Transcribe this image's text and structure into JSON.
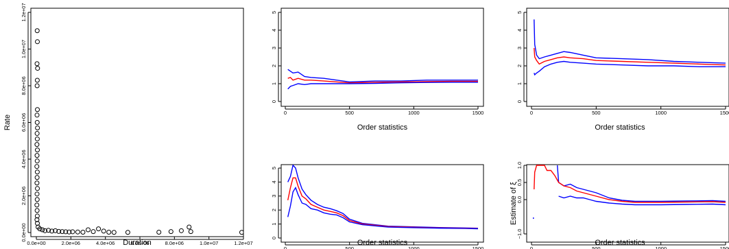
{
  "chart_data": [
    {
      "type": "scatter",
      "xlabel": "Duration",
      "ylabel": "Rate",
      "xlim": [
        0,
        12000000
      ],
      "ylim": [
        0,
        12000000
      ],
      "x_ticks": [
        "0.0e+00",
        "2.0e+06",
        "4.0e+06",
        "6.0e+06",
        "8.0e+06",
        "1.0e+07",
        "1.2e+07"
      ],
      "y_ticks": [
        "0.0e+00",
        "2.0e+06",
        "4.0e+06",
        "6.0e+06",
        "8.0e+06",
        "1.0e+07",
        "1.2e+07"
      ],
      "points": [
        [
          50000,
          11000000
        ],
        [
          60000,
          10400000
        ],
        [
          40000,
          9200000
        ],
        [
          70000,
          8950000
        ],
        [
          55000,
          8300000
        ],
        [
          45000,
          8000000
        ],
        [
          60000,
          6700000
        ],
        [
          40000,
          6400000
        ],
        [
          50000,
          6000000
        ],
        [
          65000,
          5700000
        ],
        [
          45000,
          5400000
        ],
        [
          55000,
          5100000
        ],
        [
          35000,
          4800000
        ],
        [
          60000,
          4500000
        ],
        [
          40000,
          4200000
        ],
        [
          50000,
          3900000
        ],
        [
          30000,
          3600000
        ],
        [
          55000,
          3300000
        ],
        [
          45000,
          3000000
        ],
        [
          35000,
          2700000
        ],
        [
          60000,
          2400000
        ],
        [
          40000,
          2100000
        ],
        [
          50000,
          1800000
        ],
        [
          30000,
          1500000
        ],
        [
          45000,
          1200000
        ],
        [
          55000,
          900000
        ],
        [
          35000,
          700000
        ],
        [
          60000,
          500000
        ],
        [
          100000,
          300000
        ],
        [
          200000,
          200000
        ],
        [
          350000,
          150000
        ],
        [
          500000,
          100000
        ],
        [
          700000,
          120000
        ],
        [
          900000,
          80000
        ],
        [
          1100000,
          100000
        ],
        [
          1300000,
          60000
        ],
        [
          1500000,
          50000
        ],
        [
          1700000,
          40000
        ],
        [
          1900000,
          30000
        ],
        [
          2100000,
          40000
        ],
        [
          2400000,
          30000
        ],
        [
          2700000,
          20000
        ],
        [
          3000000,
          150000
        ],
        [
          3300000,
          50000
        ],
        [
          3600000,
          200000
        ],
        [
          3900000,
          80000
        ],
        [
          4200000,
          20000
        ],
        [
          4500000,
          10000
        ],
        [
          5300000,
          10000
        ],
        [
          7100000,
          20000
        ],
        [
          7800000,
          50000
        ],
        [
          8400000,
          100000
        ],
        [
          8850000,
          300000
        ],
        [
          8950000,
          50000
        ],
        [
          11900000,
          10000
        ]
      ]
    },
    {
      "type": "line",
      "xlabel": "Order statistics",
      "ylabel": "",
      "xlim": [
        0,
        1500
      ],
      "ylim": [
        0,
        5
      ],
      "x_ticks": [
        "0",
        "500",
        "1000",
        "1500"
      ],
      "y_ticks": [
        "0",
        "1",
        "2",
        "3",
        "4",
        "5"
      ],
      "series": [
        {
          "color": "#0000ff",
          "x": [
            20,
            40,
            60,
            100,
            150,
            200,
            300,
            400,
            500,
            700,
            900,
            1100,
            1300,
            1500
          ],
          "y": [
            1.8,
            1.7,
            1.6,
            1.65,
            1.4,
            1.35,
            1.3,
            1.2,
            1.1,
            1.15,
            1.15,
            1.2,
            1.2,
            1.2
          ]
        },
        {
          "color": "#ff0000",
          "x": [
            20,
            40,
            60,
            100,
            150,
            200,
            300,
            400,
            500,
            700,
            900,
            1100,
            1300,
            1500
          ],
          "y": [
            1.3,
            1.35,
            1.2,
            1.3,
            1.2,
            1.2,
            1.15,
            1.1,
            1.05,
            1.08,
            1.1,
            1.12,
            1.13,
            1.13
          ]
        },
        {
          "color": "#0000ff",
          "x": [
            20,
            40,
            60,
            100,
            150,
            200,
            300,
            400,
            500,
            700,
            900,
            1100,
            1300,
            1500
          ],
          "y": [
            0.7,
            0.85,
            0.9,
            1.0,
            0.95,
            1.0,
            1.0,
            1.0,
            1.0,
            1.02,
            1.05,
            1.07,
            1.08,
            1.08
          ]
        }
      ]
    },
    {
      "type": "line",
      "xlabel": "Order statistics",
      "ylabel": "",
      "xlim": [
        0,
        1500
      ],
      "ylim": [
        0,
        5
      ],
      "x_ticks": [
        "0",
        "500",
        "1000",
        "1500"
      ],
      "y_ticks": [
        "0",
        "1",
        "2",
        "3",
        "4",
        "5"
      ],
      "series": [
        {
          "color": "#0000ff",
          "x": [
            20,
            25,
            40,
            60,
            100,
            150,
            200,
            250,
            300,
            400,
            500,
            700,
            900,
            1100,
            1300,
            1500
          ],
          "y": [
            4.6,
            3.2,
            2.6,
            2.4,
            2.5,
            2.6,
            2.7,
            2.8,
            2.75,
            2.6,
            2.45,
            2.4,
            2.35,
            2.25,
            2.2,
            2.15
          ]
        },
        {
          "color": "#ff0000",
          "x": [
            20,
            25,
            40,
            60,
            100,
            150,
            200,
            250,
            300,
            400,
            500,
            700,
            900,
            1100,
            1300,
            1500
          ],
          "y": [
            3.0,
            2.5,
            2.3,
            2.1,
            2.25,
            2.35,
            2.45,
            2.5,
            2.45,
            2.4,
            2.3,
            2.25,
            2.2,
            2.15,
            2.1,
            2.05
          ]
        },
        {
          "color": "#0000ff",
          "x": [
            20,
            25,
            40,
            60,
            100,
            150,
            200,
            250,
            300,
            400,
            500,
            700,
            900,
            1100,
            1300,
            1500
          ],
          "y": [
            1.6,
            1.5,
            1.6,
            1.7,
            1.95,
            2.1,
            2.2,
            2.25,
            2.2,
            2.15,
            2.1,
            2.05,
            2.0,
            2.0,
            1.95,
            1.95
          ]
        }
      ]
    },
    {
      "type": "line",
      "xlabel": "Order statistics",
      "ylabel": "",
      "xlim": [
        0,
        1500
      ],
      "ylim": [
        0,
        5
      ],
      "x_ticks": [
        "0",
        "500",
        "1000",
        "1500"
      ],
      "y_ticks": [
        "0",
        "1",
        "2",
        "3",
        "4",
        "5"
      ],
      "series": [
        {
          "color": "#0000ff",
          "x": [
            20,
            40,
            60,
            80,
            100,
            130,
            160,
            200,
            250,
            300,
            350,
            400,
            450,
            500,
            600,
            800,
            1000,
            1200,
            1400,
            1500
          ],
          "y": [
            4.0,
            4.4,
            5.2,
            5.0,
            4.3,
            3.5,
            3.1,
            2.7,
            2.4,
            2.2,
            2.1,
            1.95,
            1.75,
            1.35,
            1.05,
            0.85,
            0.8,
            0.75,
            0.72,
            0.7
          ]
        },
        {
          "color": "#ff0000",
          "x": [
            20,
            40,
            60,
            80,
            100,
            130,
            160,
            200,
            250,
            300,
            350,
            400,
            450,
            500,
            600,
            800,
            1000,
            1200,
            1400,
            1500
          ],
          "y": [
            2.7,
            3.6,
            4.3,
            4.3,
            3.7,
            3.0,
            2.8,
            2.4,
            2.2,
            2.0,
            1.9,
            1.8,
            1.6,
            1.25,
            1.0,
            0.82,
            0.77,
            0.72,
            0.7,
            0.68
          ]
        },
        {
          "color": "#0000ff",
          "x": [
            20,
            40,
            60,
            80,
            100,
            130,
            160,
            200,
            250,
            300,
            350,
            400,
            450,
            500,
            600,
            800,
            1000,
            1200,
            1400,
            1500
          ],
          "y": [
            1.5,
            2.3,
            3.3,
            3.6,
            3.1,
            2.5,
            2.4,
            2.1,
            2.0,
            1.8,
            1.7,
            1.65,
            1.45,
            1.15,
            0.95,
            0.78,
            0.74,
            0.7,
            0.68,
            0.66
          ]
        }
      ]
    },
    {
      "type": "line",
      "xlabel": "Order statistics",
      "ylabel": "Estimate of ξ",
      "xlim": [
        0,
        1500
      ],
      "ylim": [
        -1,
        1
      ],
      "x_ticks": [
        "0",
        "500",
        "1000",
        "1500"
      ],
      "y_ticks": [
        "−1.0",
        "0.0",
        "0.5",
        "1.0"
      ],
      "series": [
        {
          "color": "#0000ff",
          "x": [
            200,
            210,
            250,
            300,
            350,
            400,
            450,
            500,
            600,
            700,
            800,
            1000,
            1200,
            1400,
            1500
          ],
          "y": [
            1.0,
            0.5,
            0.4,
            0.45,
            0.35,
            0.3,
            0.25,
            0.2,
            0.05,
            -0.02,
            -0.05,
            -0.05,
            -0.04,
            -0.03,
            -0.05
          ]
        },
        {
          "color": "#ff0000",
          "x": [
            20,
            25,
            40,
            60,
            100,
            120,
            150,
            180,
            210,
            250,
            300,
            350,
            400,
            450,
            500,
            600,
            700,
            800,
            1000,
            1200,
            1400,
            1500
          ],
          "y": [
            0.3,
            0.8,
            1.0,
            1.0,
            1.0,
            0.85,
            0.85,
            0.7,
            0.5,
            0.4,
            0.35,
            0.25,
            0.2,
            0.15,
            0.1,
            0.0,
            -0.05,
            -0.08,
            -0.08,
            -0.07,
            -0.06,
            -0.08
          ]
        },
        {
          "color": "#0000ff",
          "x": [
            210,
            250,
            300,
            350,
            400,
            450,
            500,
            600,
            700,
            800,
            1000,
            1200,
            1400,
            1500
          ],
          "y": [
            0.1,
            0.05,
            0.1,
            0.05,
            0.05,
            0.0,
            -0.05,
            -0.1,
            -0.13,
            -0.15,
            -0.15,
            -0.14,
            -0.13,
            -0.15
          ]
        },
        {
          "color": "#0000ff",
          "x": [
            15,
            15
          ],
          "y": [
            -0.52,
            -0.56
          ]
        }
      ]
    }
  ]
}
